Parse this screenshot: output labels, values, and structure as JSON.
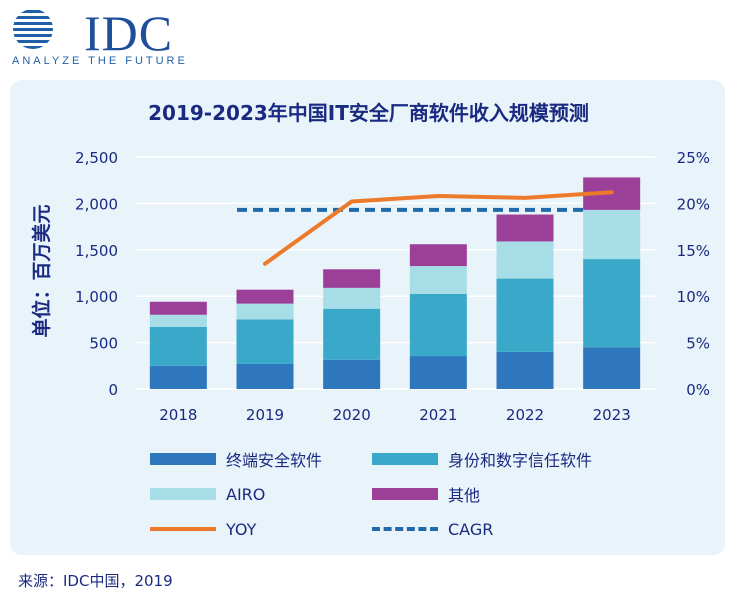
{
  "header": {
    "logo_text": "IDC",
    "tagline": "ANALYZE THE FUTURE"
  },
  "source_text": "来源：IDC中国，2019",
  "colors": {
    "endpoint": "#2e77bd",
    "identity": "#3aa9c9",
    "airo": "#a7dde6",
    "other": "#9b3f98",
    "yoy": "#ec7a2a",
    "cagr": "#2169a9",
    "text": "#1a2a80",
    "grid": "#ffffff"
  },
  "chart_data": {
    "type": "bar",
    "stacked": true,
    "title": "2019-2023年中国IT安全厂商软件收入规模预测",
    "ylabel": "单位：百万美元",
    "xlabel": "",
    "categories": [
      "2018",
      "2019",
      "2020",
      "2021",
      "2022",
      "2023"
    ],
    "ylim": [
      0,
      2500
    ],
    "y_ticks": [
      "0",
      "500",
      "1,000",
      "1,500",
      "2,000",
      "2,500"
    ],
    "y2lim": [
      0,
      25
    ],
    "y2_ticks": [
      "0%",
      "5%",
      "10%",
      "15%",
      "20%",
      "25%"
    ],
    "series": [
      {
        "name": "终端安全软件",
        "key": "endpoint",
        "values": [
          250,
          270,
          315,
          355,
          400,
          450
        ]
      },
      {
        "name": "身份和数字信任软件",
        "key": "identity",
        "values": [
          420,
          480,
          550,
          670,
          790,
          950
        ]
      },
      {
        "name": "AIRO",
        "key": "airo",
        "values": [
          130,
          170,
          225,
          300,
          400,
          530
        ]
      },
      {
        "name": "其他",
        "key": "other",
        "values": [
          140,
          150,
          200,
          235,
          290,
          350
        ]
      }
    ],
    "lines": [
      {
        "name": "YOY",
        "key": "yoy",
        "style": "solid",
        "axis": "y2",
        "values": [
          null,
          13.5,
          20.2,
          20.8,
          20.6,
          21.2
        ]
      },
      {
        "name": "CAGR",
        "key": "cagr",
        "style": "dashed",
        "axis": "y2",
        "value": 19.3,
        "span": [
          "2019",
          "2023"
        ]
      }
    ],
    "grid": true,
    "legend_position": "bottom"
  }
}
